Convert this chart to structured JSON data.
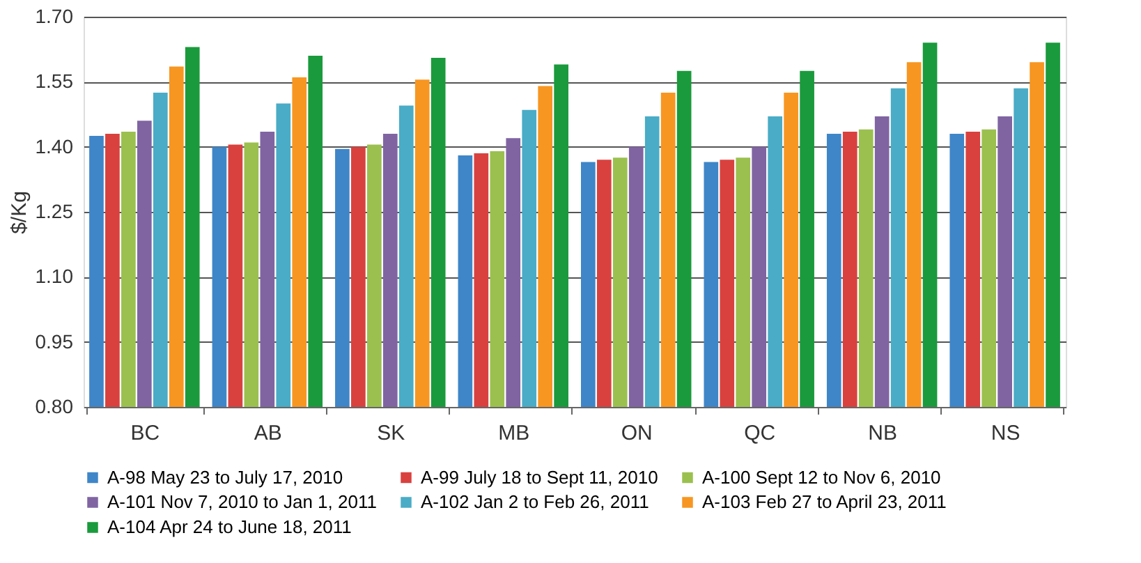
{
  "chart_data": {
    "type": "bar",
    "ylabel": "$/Kg",
    "categories": [
      "BC",
      "AB",
      "SK",
      "MB",
      "ON",
      "QC",
      "NB",
      "NS"
    ],
    "series": [
      {
        "name": "A-98 May 23 to July 17, 2010",
        "color": "#3f86c8",
        "values": [
          1.425,
          1.4,
          1.395,
          1.38,
          1.365,
          1.365,
          1.43,
          1.43
        ]
      },
      {
        "name": "A-99 July 18 to Sept 11, 2010",
        "color": "#d9413f",
        "values": [
          1.43,
          1.405,
          1.4,
          1.385,
          1.37,
          1.37,
          1.435,
          1.435
        ]
      },
      {
        "name": "A-100 Sept 12 to Nov 6, 2010",
        "color": "#9bc04f",
        "values": [
          1.435,
          1.41,
          1.405,
          1.39,
          1.375,
          1.375,
          1.44,
          1.44
        ]
      },
      {
        "name": "A-101 Nov 7, 2010 to Jan 1, 2011",
        "color": "#8064a2",
        "values": [
          1.46,
          1.435,
          1.43,
          1.42,
          1.4,
          1.4,
          1.47,
          1.47
        ]
      },
      {
        "name": "A-102 Jan 2 to Feb 26, 2011",
        "color": "#4aacc6",
        "values": [
          1.525,
          1.5,
          1.495,
          1.485,
          1.47,
          1.47,
          1.535,
          1.535
        ]
      },
      {
        "name": "A-103 Feb 27 to April 23, 2011",
        "color": "#f79621",
        "values": [
          1.585,
          1.56,
          1.555,
          1.54,
          1.525,
          1.525,
          1.595,
          1.595
        ]
      },
      {
        "name": "A-104 Apr 24 to June 18, 2011",
        "color": "#1a9a3c",
        "values": [
          1.63,
          1.61,
          1.605,
          1.59,
          1.575,
          1.575,
          1.64,
          1.64
        ]
      }
    ],
    "ylim": [
      0.8,
      1.7
    ],
    "yticks": [
      {
        "value": 0.8,
        "label": "0.80"
      },
      0.95,
      {
        "value": 1.1,
        "label": "1.10"
      },
      1.25,
      {
        "value": 1.4,
        "label": "1.40"
      },
      1.55,
      {
        "value": 1.7,
        "label": "1.70"
      }
    ],
    "grid": "y",
    "legend": "bottom"
  }
}
